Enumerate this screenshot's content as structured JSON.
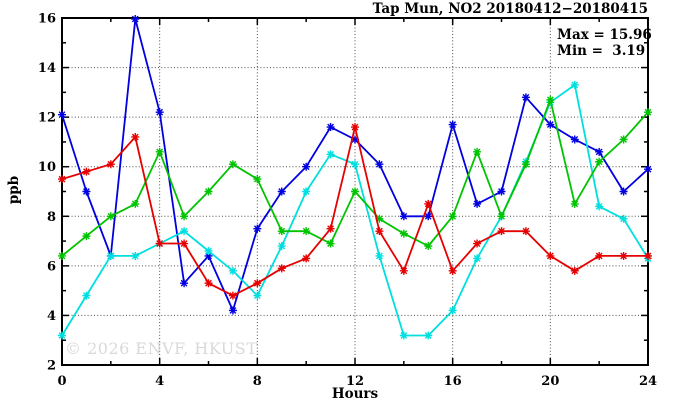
{
  "title": "Tap Mun, NO2 20180412−20180415",
  "legend": {
    "max_label": "Max = 15.96",
    "min_label": "Min =  3.19"
  },
  "watermark": {
    "text": "© 2026 ENVF, HKUST",
    "color": "#d9d9d9"
  },
  "chart_data": {
    "type": "line",
    "title": "Tap Mun, NO2 20180412−20180415",
    "xlabel": "Hours",
    "ylabel": "ppb",
    "xlim": [
      0,
      24
    ],
    "ylim": [
      2,
      16
    ],
    "x_major_ticks": [
      0,
      4,
      8,
      12,
      16,
      20,
      24
    ],
    "x_minor_ticks": [
      2,
      6,
      10,
      14,
      18,
      22
    ],
    "y_major_ticks": [
      2,
      4,
      6,
      8,
      10,
      12,
      14,
      16
    ],
    "y_minor_ticks": [
      3,
      5,
      7,
      9,
      11,
      13,
      15
    ],
    "grid": true,
    "grid_color": "#4d4d4d",
    "frame_color": "#000000",
    "legend_position": "top-right",
    "annotations": {
      "max": 15.96,
      "min": 3.19
    },
    "marker": "asterisk",
    "x": [
      0,
      1,
      2,
      3,
      4,
      5,
      6,
      7,
      8,
      9,
      10,
      11,
      12,
      13,
      14,
      15,
      16,
      17,
      18,
      19,
      20,
      21,
      22,
      23,
      24
    ],
    "series": [
      {
        "name": "blue-series",
        "color": "#0000e0",
        "values": [
          12.1,
          9.0,
          6.4,
          15.96,
          12.2,
          5.3,
          6.4,
          4.2,
          7.5,
          9.0,
          10.0,
          11.6,
          11.1,
          10.1,
          8.0,
          8.0,
          11.7,
          8.5,
          9.0,
          12.8,
          11.7,
          11.1,
          10.6,
          9.0,
          9.9
        ]
      },
      {
        "name": "cyan-series",
        "color": "#00dfdf",
        "values": [
          3.19,
          4.8,
          6.4,
          6.4,
          6.9,
          7.4,
          6.6,
          5.8,
          4.8,
          6.8,
          9.0,
          10.5,
          10.1,
          6.4,
          3.19,
          3.19,
          4.2,
          6.3,
          8.0,
          10.2,
          12.6,
          13.3,
          8.4,
          7.9,
          6.3
        ]
      },
      {
        "name": "green-series",
        "color": "#00c400",
        "values": [
          6.4,
          7.2,
          8.0,
          8.5,
          10.6,
          8.0,
          9.0,
          10.1,
          9.5,
          7.4,
          7.4,
          6.9,
          9.0,
          7.9,
          7.3,
          6.8,
          8.0,
          10.6,
          8.0,
          10.1,
          12.7,
          8.5,
          10.2,
          11.1,
          12.2
        ]
      },
      {
        "name": "red-series",
        "color": "#e60000",
        "values": [
          9.5,
          9.8,
          10.1,
          11.2,
          6.9,
          6.9,
          5.3,
          4.8,
          5.3,
          5.9,
          6.3,
          7.5,
          11.6,
          7.4,
          5.8,
          8.5,
          5.8,
          6.9,
          7.4,
          7.4,
          6.4,
          5.8,
          6.4,
          6.4,
          6.4
        ]
      }
    ]
  }
}
